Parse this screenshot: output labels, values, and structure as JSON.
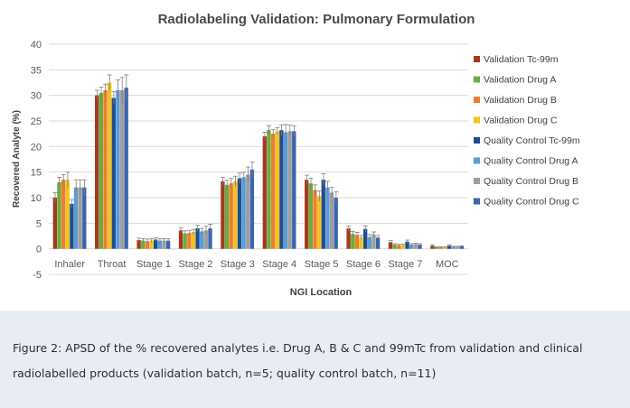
{
  "caption": "Figure 2: APSD of the % recovered analytes i.e. Drug A, B & C and 99mTc from validation and clinical radiolabelled products (validation batch, n=5; quality control batch, n=11)",
  "chart_data": {
    "type": "bar",
    "title": "Radiolabeling Validation: Pulmonary Formulation",
    "xlabel": "NGI Location",
    "ylabel": "Recovered Analyte (%)",
    "ylim": [
      -5,
      40
    ],
    "yticks": [
      -5,
      0,
      5,
      10,
      15,
      20,
      25,
      30,
      35,
      40
    ],
    "grid": true,
    "legend_position": "right",
    "error_bars": true,
    "categories": [
      "Inhaler",
      "Throat",
      "Stage 1",
      "Stage 2",
      "Stage 3",
      "Stage 4",
      "Stage 5",
      "Stage 6",
      "Stage 7",
      "MOC"
    ],
    "series": [
      {
        "name": "Validation Tc-99m",
        "color": "#a33a1d",
        "values": [
          10.0,
          30.0,
          1.7,
          3.6,
          13.2,
          22.0,
          13.5,
          4.0,
          1.3,
          0.6
        ],
        "errors": [
          1.0,
          1.0,
          0.4,
          0.5,
          0.8,
          0.8,
          0.9,
          0.5,
          0.3,
          0.2
        ]
      },
      {
        "name": "Validation Drug A",
        "color": "#6aac3c",
        "values": [
          13.0,
          30.5,
          1.6,
          3.0,
          12.5,
          23.2,
          12.8,
          2.9,
          0.8,
          0.3
        ],
        "errors": [
          1.0,
          1.1,
          0.4,
          0.5,
          0.9,
          0.9,
          1.0,
          0.5,
          0.2,
          0.1
        ]
      },
      {
        "name": "Validation Drug B",
        "color": "#ed7d31",
        "values": [
          13.5,
          31.0,
          1.5,
          3.1,
          12.8,
          22.5,
          11.5,
          2.7,
          0.7,
          0.3
        ],
        "errors": [
          1.0,
          1.2,
          0.4,
          0.5,
          1.0,
          0.8,
          1.0,
          0.5,
          0.2,
          0.1
        ]
      },
      {
        "name": "Validation Drug C",
        "color": "#f5c11b",
        "values": [
          13.5,
          32.5,
          1.6,
          3.3,
          13.2,
          23.0,
          10.3,
          2.2,
          0.7,
          0.3
        ],
        "errors": [
          1.5,
          1.5,
          0.4,
          0.5,
          1.0,
          0.7,
          1.0,
          0.4,
          0.2,
          0.1
        ]
      },
      {
        "name": "Quality Control Tc-99m",
        "color": "#1f4e8c",
        "values": [
          8.8,
          29.5,
          1.8,
          4.0,
          13.8,
          23.2,
          13.5,
          3.9,
          1.4,
          0.6
        ],
        "errors": [
          0.8,
          1.2,
          0.4,
          0.6,
          1.0,
          1.0,
          1.2,
          0.6,
          0.3,
          0.2
        ]
      },
      {
        "name": "Quality Control Drug A",
        "color": "#5b9bd5",
        "values": [
          12.0,
          31.0,
          1.6,
          3.4,
          14.0,
          22.8,
          12.0,
          2.3,
          0.8,
          0.4
        ],
        "errors": [
          1.5,
          2.0,
          0.4,
          0.6,
          1.0,
          1.5,
          1.2,
          0.5,
          0.2,
          0.1
        ]
      },
      {
        "name": "Quality Control Drug B",
        "color": "#9e9e9e",
        "values": [
          12.0,
          31.0,
          1.6,
          3.6,
          14.5,
          23.0,
          11.0,
          2.8,
          0.9,
          0.4
        ],
        "errors": [
          1.5,
          2.5,
          0.4,
          0.8,
          1.5,
          1.2,
          1.0,
          0.5,
          0.2,
          0.1
        ]
      },
      {
        "name": "Quality Control Drug C",
        "color": "#3a64b0",
        "values": [
          12.0,
          31.5,
          1.6,
          4.0,
          15.5,
          23.0,
          10.0,
          2.2,
          0.8,
          0.5
        ],
        "errors": [
          1.5,
          2.5,
          0.4,
          0.8,
          1.5,
          1.0,
          1.2,
          0.4,
          0.2,
          0.1
        ]
      }
    ]
  }
}
